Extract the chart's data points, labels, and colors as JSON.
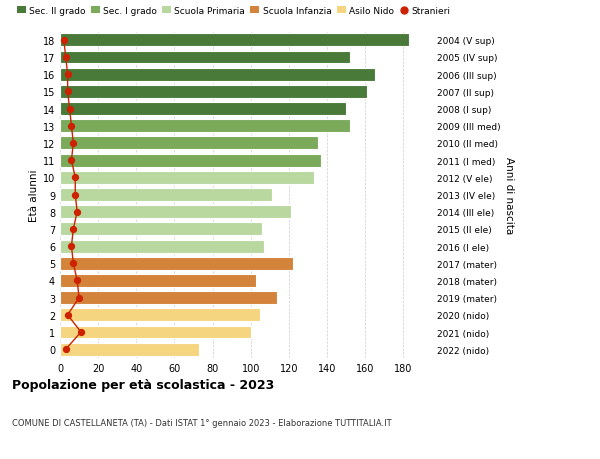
{
  "ages": [
    18,
    17,
    16,
    15,
    14,
    13,
    12,
    11,
    10,
    9,
    8,
    7,
    6,
    5,
    4,
    3,
    2,
    1,
    0
  ],
  "labels_right": [
    "2004 (V sup)",
    "2005 (IV sup)",
    "2006 (III sup)",
    "2007 (II sup)",
    "2008 (I sup)",
    "2009 (III med)",
    "2010 (II med)",
    "2011 (I med)",
    "2012 (V ele)",
    "2013 (IV ele)",
    "2014 (III ele)",
    "2015 (II ele)",
    "2016 (I ele)",
    "2017 (mater)",
    "2018 (mater)",
    "2019 (mater)",
    "2020 (nido)",
    "2021 (nido)",
    "2022 (nido)"
  ],
  "bar_values": [
    183,
    152,
    165,
    161,
    150,
    152,
    135,
    137,
    133,
    111,
    121,
    106,
    107,
    122,
    103,
    114,
    105,
    100,
    73
  ],
  "bar_colors": [
    "#4a7a3a",
    "#4a7a3a",
    "#4a7a3a",
    "#4a7a3a",
    "#4a7a3a",
    "#7aaa5a",
    "#7aaa5a",
    "#7aaa5a",
    "#b8d8a0",
    "#b8d8a0",
    "#b8d8a0",
    "#b8d8a0",
    "#b8d8a0",
    "#d4833a",
    "#d4833a",
    "#d4833a",
    "#f5d580",
    "#f5d580",
    "#f5d580"
  ],
  "stranieri_values": [
    2,
    3,
    4,
    4,
    5,
    6,
    7,
    6,
    8,
    8,
    9,
    7,
    6,
    7,
    9,
    10,
    4,
    11,
    3
  ],
  "xlim": [
    0,
    195
  ],
  "xticks": [
    0,
    20,
    40,
    60,
    80,
    100,
    120,
    140,
    160,
    180
  ],
  "title_main": "Popolazione per età scolastica - 2023",
  "subtitle": "COMUNE DI CASTELLANETA (TA) - Dati ISTAT 1° gennaio 2023 - Elaborazione TUTTITALIA.IT",
  "ylabel": "Età alunni",
  "ylabel_right": "Anni di nascita",
  "legend_items": [
    {
      "label": "Sec. II grado",
      "color": "#4a7a3a"
    },
    {
      "label": "Sec. I grado",
      "color": "#7aaa5a"
    },
    {
      "label": "Scuola Primaria",
      "color": "#b8d8a0"
    },
    {
      "label": "Scuola Infanzia",
      "color": "#d4833a"
    },
    {
      "label": "Asilo Nido",
      "color": "#f5d580"
    },
    {
      "label": "Stranieri",
      "color": "#cc2200"
    }
  ],
  "background_color": "#ffffff",
  "grid_color": "#cccccc"
}
